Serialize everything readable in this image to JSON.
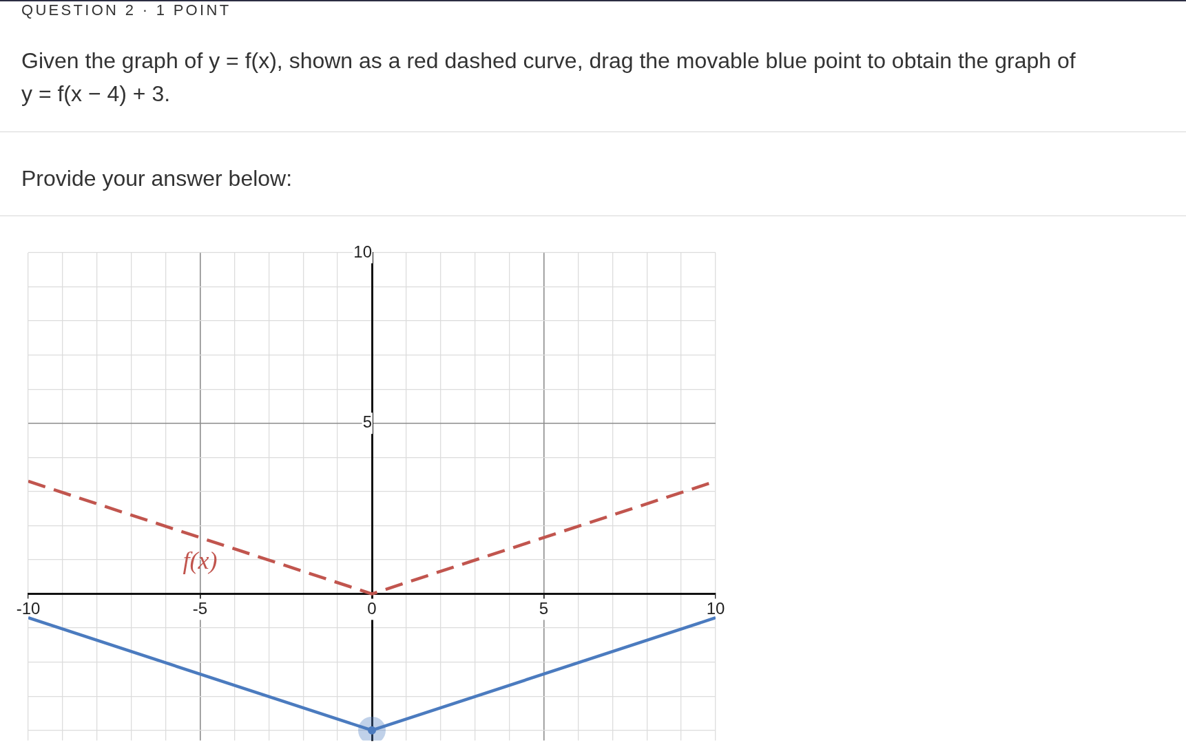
{
  "chart_data": {
    "type": "line",
    "title": "QUESTION 2 · 1 POINT",
    "subtitle": "Given the graph of y = f(x), shown as a red dashed curve, drag the movable blue point to obtain the graph of y = f(x − 4) + 3.",
    "annotations": [
      "Provide your answer below:"
    ],
    "x": [
      -10,
      0,
      10
    ],
    "series": [
      {
        "name": "f(x)",
        "color": "#c1554e",
        "line_style": "dashed",
        "marker": "none",
        "values": [
          3.3,
          0,
          3.3
        ]
      },
      {
        "color": "#4b7bbf",
        "line_style": "solid",
        "marker": "none",
        "values": [
          -0.7,
          -4,
          -0.7
        ]
      },
      {
        "type": "scatter",
        "color": "#4b7bbf",
        "marker": "circle",
        "x": [
          0
        ],
        "values": [
          -4
        ]
      }
    ],
    "xlim": [
      -10,
      10
    ],
    "ylim": [
      -4.3,
      10
    ],
    "xticks": [
      -10,
      {
        "value": -9,
        "label": null
      },
      {
        "value": -8,
        "label": null
      },
      {
        "value": -7,
        "label": null
      },
      {
        "value": -6,
        "label": null
      },
      -5,
      {
        "value": -4,
        "label": null
      },
      {
        "value": -3,
        "label": null
      },
      {
        "value": -2,
        "label": null
      },
      {
        "value": -1,
        "label": null
      },
      0,
      {
        "value": 1,
        "label": null
      },
      {
        "value": 2,
        "label": null
      },
      {
        "value": 3,
        "label": null
      },
      {
        "value": 4,
        "label": null
      },
      5,
      {
        "value": 6,
        "label": null
      },
      {
        "value": 7,
        "label": null
      },
      {
        "value": 8,
        "label": null
      },
      {
        "value": 9,
        "label": null
      },
      10
    ],
    "yticks": [
      {
        "value": -4,
        "label": null
      },
      {
        "value": -3,
        "label": null
      },
      {
        "value": -2,
        "label": null
      },
      {
        "value": -1,
        "label": null
      },
      {
        "value": 0,
        "label": null
      },
      {
        "value": 1,
        "label": null
      },
      {
        "value": 2,
        "label": null
      },
      {
        "value": 3,
        "label": null
      },
      {
        "value": 4,
        "label": null
      },
      5,
      {
        "value": 6,
        "label": null
      },
      {
        "value": 7,
        "label": null
      },
      {
        "value": 8,
        "label": null
      },
      {
        "value": 9,
        "label": null
      },
      10
    ],
    "grid": true,
    "legend": false
  }
}
